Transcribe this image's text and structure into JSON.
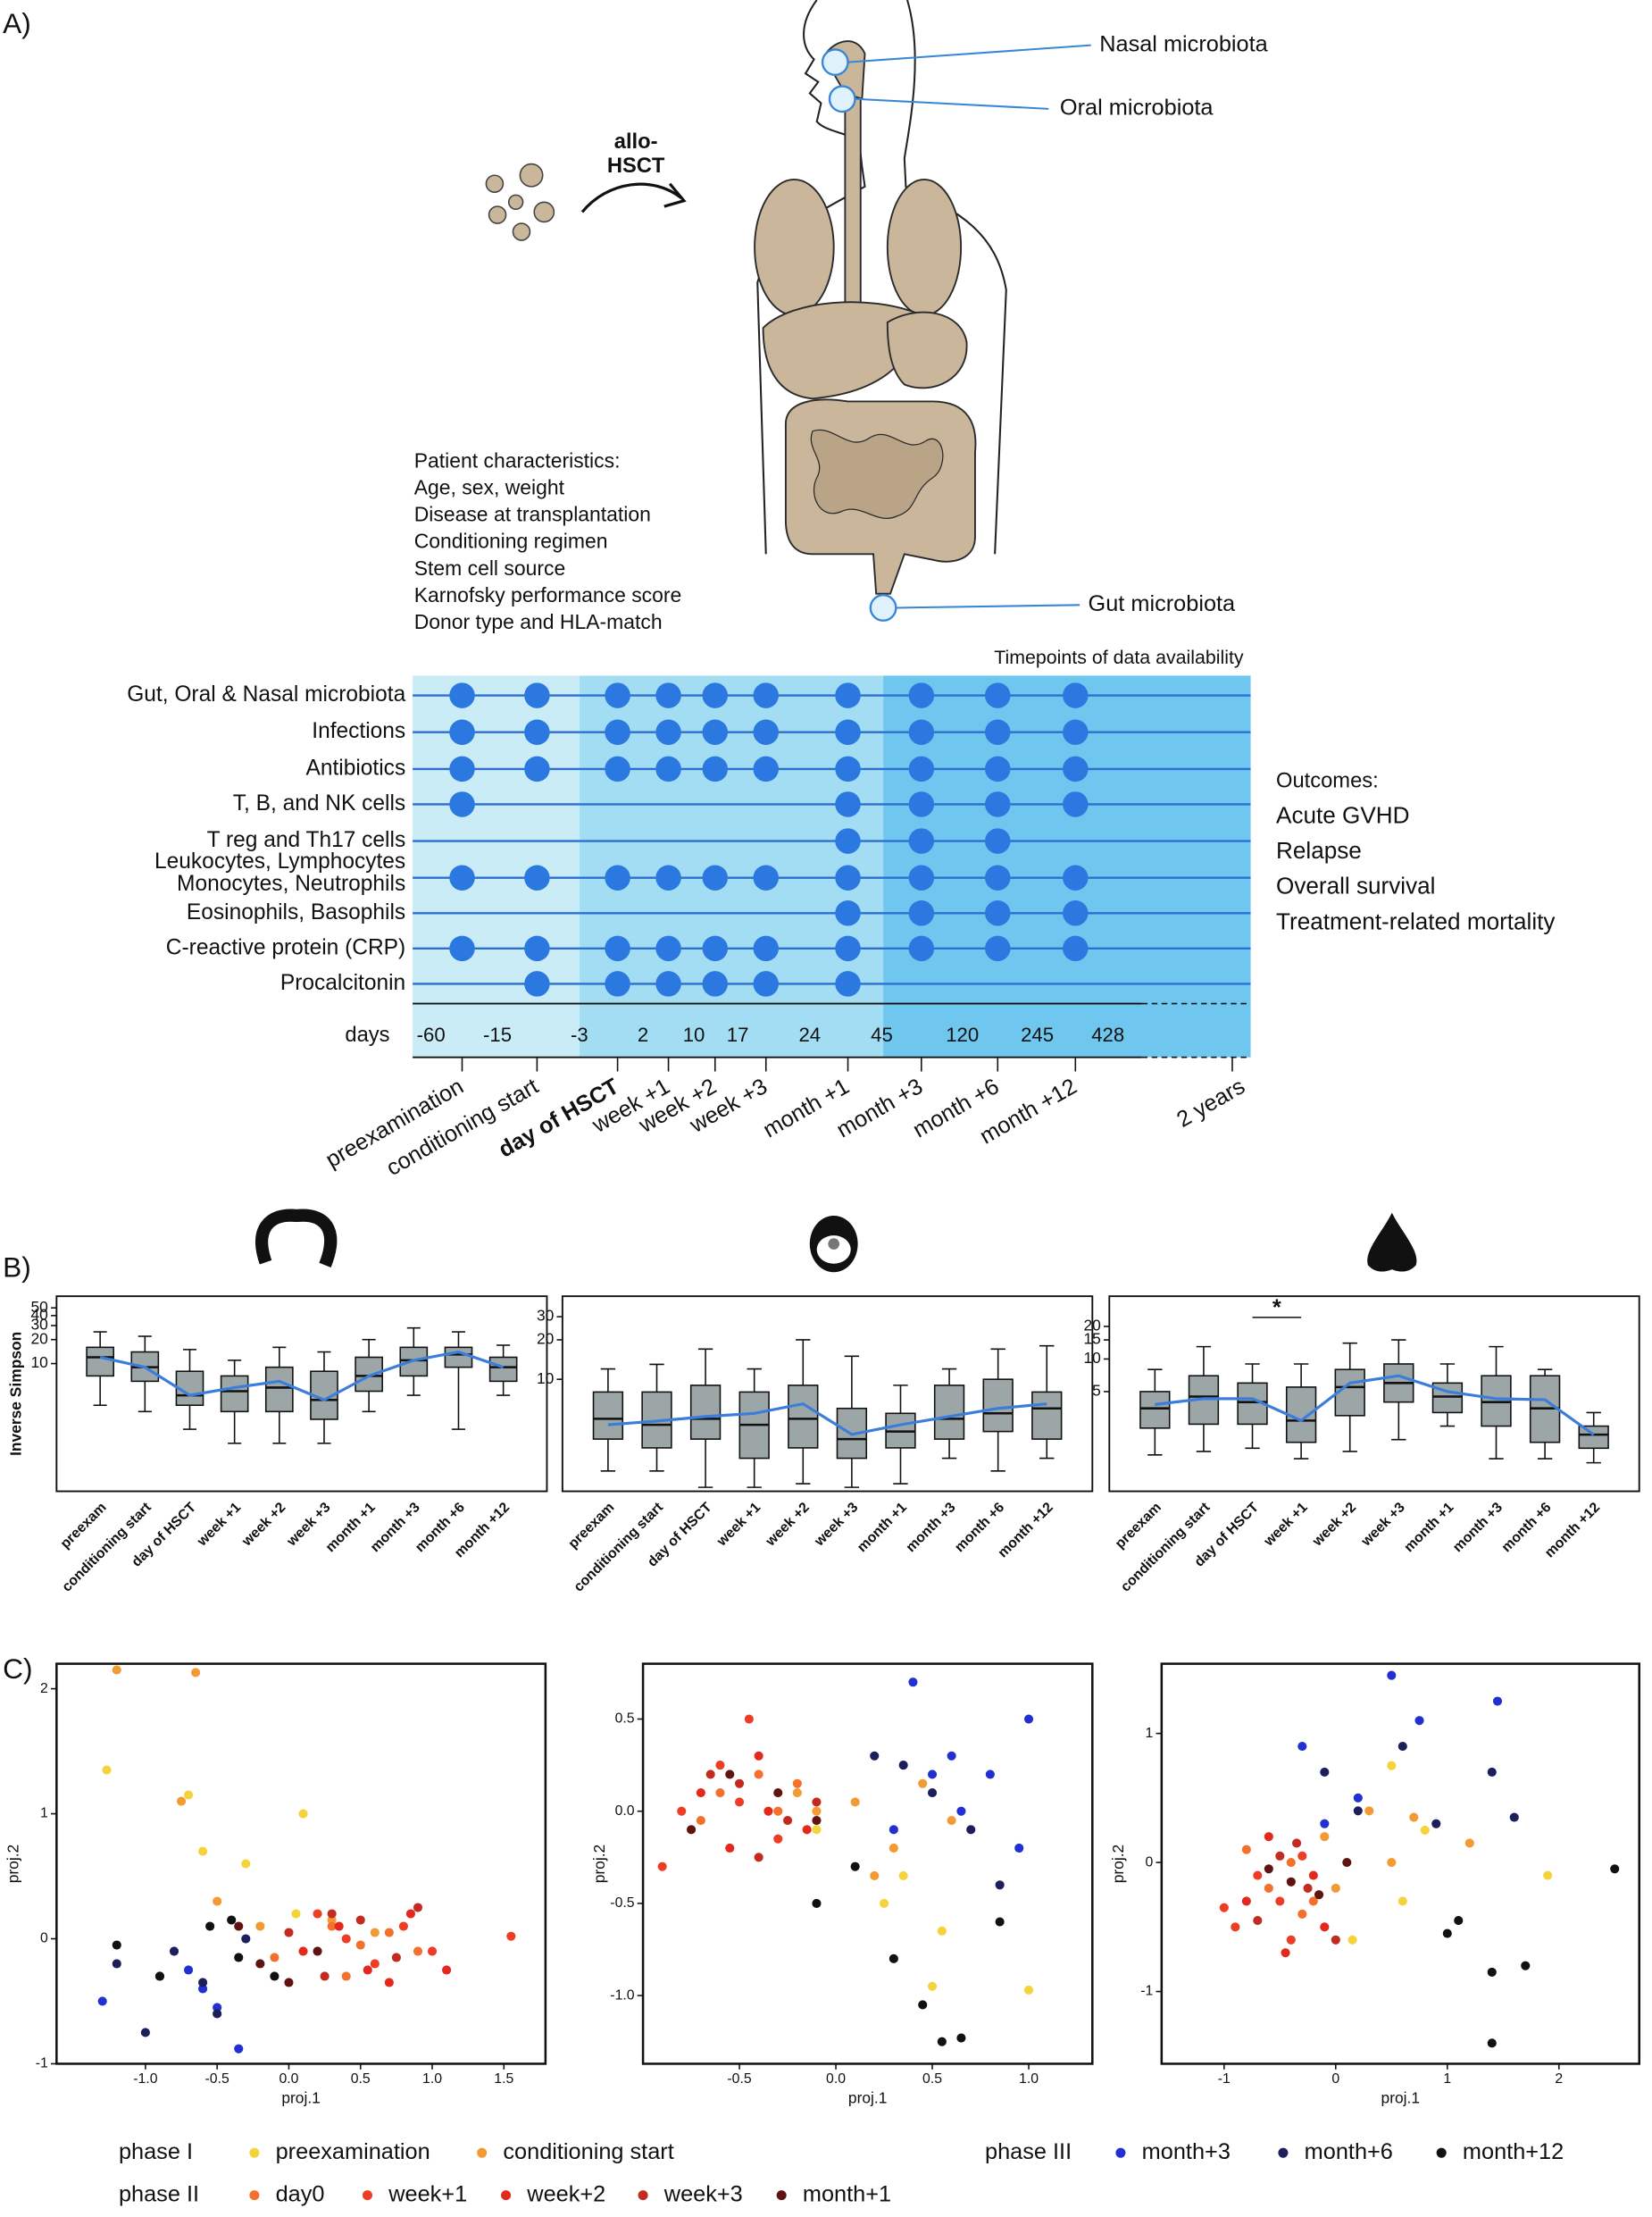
{
  "panels": {
    "a": "A)",
    "b": "B)",
    "c": "C)"
  },
  "illustration": {
    "arrow_label": [
      "allo-",
      "HSCT"
    ],
    "sites": [
      "Nasal microbiota",
      "Oral microbiota",
      "Gut microbiota"
    ]
  },
  "patient_characteristics": {
    "title": "Patient characteristics:",
    "items": [
      "Age, sex, weight",
      "Disease at transplantation",
      "Conditioning regimen",
      "Stem cell source",
      "Karnofsky performance score",
      "Donor type and HLA-match"
    ]
  },
  "timeline": {
    "title": "Timepoints of data availability",
    "rows": [
      {
        "label": [
          "Gut, Oral & Nasal microbiota"
        ],
        "available": [
          true,
          true,
          true,
          true,
          true,
          true,
          true,
          true,
          true,
          true
        ]
      },
      {
        "label": [
          "Infections"
        ],
        "available": [
          true,
          true,
          true,
          true,
          true,
          true,
          true,
          true,
          true,
          true
        ]
      },
      {
        "label": [
          "Antibiotics"
        ],
        "available": [
          true,
          true,
          true,
          true,
          true,
          true,
          true,
          true,
          true,
          true
        ]
      },
      {
        "label": [
          "T, B, and NK cells"
        ],
        "available": [
          true,
          false,
          false,
          false,
          false,
          false,
          true,
          true,
          true,
          true
        ]
      },
      {
        "label": [
          "T reg and Th17 cells"
        ],
        "available": [
          false,
          false,
          false,
          false,
          false,
          false,
          true,
          true,
          true,
          false
        ]
      },
      {
        "label": [
          "Leukocytes, Lymphocytes",
          "Monocytes, Neutrophils"
        ],
        "available": [
          true,
          true,
          true,
          true,
          true,
          true,
          true,
          true,
          true,
          true
        ]
      },
      {
        "label": [
          "Eosinophils, Basophils"
        ],
        "available": [
          false,
          false,
          false,
          false,
          false,
          false,
          true,
          true,
          true,
          true
        ]
      },
      {
        "label": [
          "C-reactive protein (CRP)"
        ],
        "available": [
          true,
          true,
          true,
          true,
          true,
          true,
          true,
          true,
          true,
          true
        ]
      },
      {
        "label": [
          "Procalcitonin"
        ],
        "available": [
          false,
          true,
          true,
          true,
          true,
          true,
          true,
          false,
          false,
          false
        ]
      }
    ],
    "days_label": "days",
    "days": [
      "-60",
      "-15",
      "-3",
      "2",
      "10",
      "17",
      "24",
      "45",
      "120",
      "245",
      "428"
    ],
    "timepoints": [
      "preexamination",
      "conditioning start",
      "day of HSCT",
      "week +1",
      "week +2",
      "week +3",
      "month +1",
      "month +3",
      "month +6",
      "month +12"
    ],
    "end_label": "2 years"
  },
  "outcomes": {
    "title": "Outcomes:",
    "items": [
      "Acute GVHD",
      "Relapse",
      "Overall survival",
      "Treatment-related mortality"
    ]
  },
  "chart_data": [
    {
      "type": "box",
      "ylabel": "Inverse Simpson",
      "yscale": "log",
      "ylim": [
        0.25,
        70
      ],
      "yticks": [
        10,
        20,
        30,
        40,
        50
      ],
      "categories": [
        "preexam",
        "conditioning start",
        "day of HSCT",
        "week +1",
        "week +2",
        "week +3",
        "month +1",
        "month +3",
        "month +6",
        "month +12"
      ],
      "box_color": "#9ca6a6",
      "trend_color": "#3b7ddb",
      "boxes": [
        [
          3,
          7,
          12,
          16,
          25
        ],
        [
          2.5,
          6,
          9,
          14,
          22
        ],
        [
          1.5,
          3,
          4,
          8,
          15
        ],
        [
          1,
          2.5,
          4.5,
          7,
          11
        ],
        [
          1,
          2.5,
          5,
          9,
          16
        ],
        [
          1,
          2,
          3.5,
          8,
          14
        ],
        [
          2.5,
          4.5,
          7,
          12,
          20
        ],
        [
          4,
          7,
          11,
          16,
          28
        ],
        [
          1.5,
          9,
          13,
          16,
          25
        ],
        [
          4,
          6,
          9,
          12,
          17
        ]
      ],
      "trend": [
        12,
        9,
        4,
        5,
        6,
        3.5,
        7,
        11,
        14,
        9
      ]
    },
    {
      "type": "box",
      "yscale": "log",
      "ylim": [
        1.4,
        43
      ],
      "yticks": [
        10,
        20,
        30
      ],
      "categories": [
        "preexam",
        "conditioning start",
        "day of HSCT",
        "week +1",
        "week +2",
        "week +3",
        "month +1",
        "month +3",
        "month +6",
        "month +12"
      ],
      "box_color": "#9ca6a6",
      "trend_color": "#3b7ddb",
      "boxes": [
        [
          2,
          3.5,
          5,
          8,
          12
        ],
        [
          2,
          3,
          4.5,
          8,
          13
        ],
        [
          1.5,
          3.5,
          5,
          9,
          17
        ],
        [
          1.5,
          2.5,
          4.5,
          8,
          12
        ],
        [
          1.6,
          3,
          5,
          9,
          20
        ],
        [
          1.5,
          2.5,
          3.5,
          6,
          15
        ],
        [
          1.6,
          3,
          4,
          5.5,
          9
        ],
        [
          2.5,
          3.5,
          5,
          9,
          12
        ],
        [
          2,
          4,
          5.5,
          10,
          17
        ],
        [
          2.5,
          3.5,
          6,
          8,
          18
        ]
      ],
      "trend": [
        4.5,
        4.8,
        5.2,
        5.5,
        6.5,
        3.8,
        4.5,
        5.2,
        6,
        6.5
      ]
    },
    {
      "type": "box",
      "yscale": "log",
      "ylim": [
        0.6,
        38
      ],
      "yticks": [
        5,
        10,
        15,
        20
      ],
      "annotation": "*",
      "categories": [
        "preexam",
        "conditioning start",
        "day of HSCT",
        "week +1",
        "week +2",
        "week +3",
        "month +1",
        "month +3",
        "month +6",
        "month +12"
      ],
      "box_color": "#9ca6a6",
      "trend_color": "#3b7ddb",
      "boxes": [
        [
          1.3,
          2.3,
          3.5,
          5,
          8
        ],
        [
          1.4,
          2.5,
          4.5,
          7,
          13
        ],
        [
          1.5,
          2.5,
          4,
          6,
          9
        ],
        [
          1.2,
          1.7,
          2.7,
          5.5,
          9
        ],
        [
          1.4,
          3,
          5.5,
          8,
          14
        ],
        [
          1.8,
          4,
          6,
          9,
          15
        ],
        [
          2.4,
          3.2,
          4.5,
          6,
          9
        ],
        [
          1.2,
          2.4,
          4,
          7,
          13
        ],
        [
          1.2,
          1.7,
          3.5,
          7,
          8
        ],
        [
          1.1,
          1.5,
          2,
          2.4,
          3.2
        ]
      ],
      "trend": [
        3.8,
        4.3,
        4.3,
        2.7,
        6,
        7,
        5,
        4.3,
        4.2,
        2
      ]
    },
    {
      "type": "scatter",
      "xlabel": "proj.1",
      "ylabel": "proj.2",
      "xlim": [
        -1.62,
        1.79
      ],
      "ylim": [
        -1.0,
        2.2
      ],
      "xticks": [
        {
          "value": -1,
          "label": "-1.0"
        },
        -0.5,
        {
          "value": 0,
          "label": "0.0"
        },
        0.5,
        {
          "value": 1,
          "label": "1.0"
        },
        1.5
      ],
      "yticks": [
        -1,
        0,
        1,
        2
      ],
      "series": [
        {
          "x": [
            -1.27,
            -0.7,
            -0.6,
            0.05,
            -0.3,
            0.1
          ],
          "y": [
            1.35,
            1.15,
            0.7,
            0.2,
            0.6,
            1.0
          ]
        },
        {
          "x": [
            -1.2,
            -0.65,
            -0.75,
            -0.5,
            -0.2,
            0.3,
            0.6
          ],
          "y": [
            2.15,
            2.13,
            1.1,
            0.3,
            0.1,
            0.15,
            0.05
          ]
        },
        {
          "x": [
            0.3,
            0.5,
            -0.1,
            0.7,
            0.4,
            0.9
          ],
          "y": [
            0.1,
            -0.05,
            -0.15,
            0.05,
            -0.3,
            -0.1
          ]
        },
        {
          "x": [
            0.2,
            0.6,
            0.8,
            1.0,
            0.4,
            1.55
          ],
          "y": [
            0.2,
            -0.2,
            0.1,
            -0.1,
            0.0,
            0.02
          ]
        },
        {
          "x": [
            0.1,
            0.35,
            0.55,
            0.85,
            1.1,
            0.7
          ],
          "y": [
            -0.1,
            0.1,
            -0.25,
            0.2,
            -0.25,
            -0.35
          ]
        },
        {
          "x": [
            0.0,
            0.25,
            0.5,
            0.75,
            0.3,
            0.9
          ],
          "y": [
            0.05,
            -0.3,
            0.15,
            -0.15,
            0.2,
            0.25
          ]
        },
        {
          "x": [
            -0.2,
            0.0,
            0.2,
            -0.35
          ],
          "y": [
            -0.2,
            -0.35,
            -0.1,
            0.1
          ]
        },
        {
          "x": [
            -1.3,
            -0.9,
            -0.6,
            -0.5,
            -0.35,
            -0.7
          ],
          "y": [
            -0.5,
            -0.3,
            -0.4,
            -0.55,
            -0.88,
            -0.25
          ]
        },
        {
          "x": [
            -1.0,
            -0.8,
            -0.6,
            -0.3,
            -1.2,
            -0.5
          ],
          "y": [
            -0.75,
            -0.1,
            -0.35,
            0.0,
            -0.2,
            -0.6
          ]
        },
        {
          "x": [
            -1.2,
            -0.4,
            -0.9,
            -0.1,
            -0.55,
            -0.35
          ],
          "y": [
            -0.05,
            0.15,
            -0.3,
            -0.3,
            0.1,
            -0.15
          ]
        }
      ]
    },
    {
      "type": "scatter",
      "xlabel": "proj.1",
      "ylabel": "proj.2",
      "xlim": [
        -1.0,
        1.33
      ],
      "ylim": [
        -1.37,
        0.8
      ],
      "xticks": [
        -0.5,
        {
          "value": 0,
          "label": "0.0"
        },
        0.5,
        {
          "value": 1,
          "label": "1.0"
        }
      ],
      "yticks": [
        0.5,
        {
          "value": 0,
          "label": "0.0"
        },
        -0.5,
        {
          "value": -1,
          "label": "-1.0"
        }
      ],
      "series": [
        {
          "x": [
            0.25,
            0.5,
            0.55,
            -0.1,
            1.0,
            0.35
          ],
          "y": [
            -0.5,
            -0.95,
            -0.65,
            -0.1,
            -0.97,
            -0.35
          ]
        },
        {
          "x": [
            -0.1,
            0.3,
            0.1,
            0.45,
            0.2,
            -0.2,
            0.6
          ],
          "y": [
            0.0,
            -0.2,
            0.05,
            0.15,
            -0.35,
            0.1,
            -0.05
          ]
        },
        {
          "x": [
            -0.6,
            -0.4,
            -0.3,
            -0.7,
            -0.2
          ],
          "y": [
            0.1,
            0.2,
            0.0,
            -0.05,
            0.15
          ]
        },
        {
          "x": [
            -0.5,
            -0.6,
            -0.3,
            -0.8,
            -0.45,
            -0.9
          ],
          "y": [
            0.05,
            0.25,
            -0.15,
            0.0,
            0.5,
            -0.3
          ]
        },
        {
          "x": [
            -0.4,
            -0.7,
            -0.15,
            -0.55,
            -0.35
          ],
          "y": [
            0.3,
            0.1,
            -0.1,
            -0.2,
            0.0
          ]
        },
        {
          "x": [
            -0.5,
            -0.25,
            -0.65,
            -0.4,
            -0.1
          ],
          "y": [
            0.15,
            -0.05,
            0.2,
            -0.25,
            0.05
          ]
        },
        {
          "x": [
            -0.55,
            -0.3,
            -0.75,
            -0.1
          ],
          "y": [
            0.2,
            0.1,
            -0.1,
            -0.05
          ]
        },
        {
          "x": [
            0.4,
            0.6,
            0.8,
            0.95,
            0.3,
            1.0,
            0.65,
            0.5
          ],
          "y": [
            0.7,
            0.3,
            0.2,
            -0.2,
            -0.1,
            0.5,
            0.0,
            0.2
          ]
        },
        {
          "x": [
            0.2,
            0.5,
            0.7,
            0.35,
            0.85
          ],
          "y": [
            0.3,
            0.1,
            -0.1,
            0.25,
            -0.4
          ]
        },
        {
          "x": [
            0.45,
            0.55,
            0.65,
            -0.1,
            0.3,
            0.85,
            0.1
          ],
          "y": [
            -1.05,
            -1.25,
            -1.23,
            -0.5,
            -0.8,
            -0.6,
            -0.3
          ]
        }
      ]
    },
    {
      "type": "scatter",
      "xlabel": "proj.1",
      "ylabel": "proj.2",
      "xlim": [
        -1.56,
        2.72
      ],
      "ylim": [
        -1.56,
        1.54
      ],
      "xticks": [
        -1,
        0,
        1,
        2
      ],
      "yticks": [
        1,
        0,
        -1
      ],
      "series": [
        {
          "x": [
            0.5,
            0.8,
            1.9,
            0.6,
            0.15
          ],
          "y": [
            0.75,
            0.25,
            -0.1,
            -0.3,
            -0.6
          ]
        },
        {
          "x": [
            0.3,
            -0.1,
            0.5,
            1.2,
            0.0,
            0.7
          ],
          "y": [
            0.4,
            0.2,
            0.0,
            0.15,
            -0.2,
            0.35
          ]
        },
        {
          "x": [
            -0.6,
            -0.4,
            -0.3,
            -0.8,
            -0.2
          ],
          "y": [
            -0.2,
            0.0,
            -0.4,
            0.1,
            -0.3
          ]
        },
        {
          "x": [
            -0.7,
            -0.5,
            -0.9,
            -0.3,
            -0.4,
            -1.0
          ],
          "y": [
            -0.1,
            -0.3,
            -0.5,
            0.05,
            -0.6,
            -0.35
          ]
        },
        {
          "x": [
            -0.6,
            -0.2,
            -0.8,
            -0.45,
            -0.1
          ],
          "y": [
            0.2,
            -0.1,
            -0.3,
            -0.7,
            -0.5
          ]
        },
        {
          "x": [
            -0.5,
            -0.25,
            -0.7,
            -0.35,
            0.0
          ],
          "y": [
            0.05,
            -0.2,
            -0.45,
            0.15,
            -0.6
          ]
        },
        {
          "x": [
            -0.4,
            -0.15,
            0.1,
            -0.6
          ],
          "y": [
            -0.15,
            -0.25,
            0.0,
            -0.05
          ]
        },
        {
          "x": [
            0.5,
            0.75,
            -0.3,
            1.45,
            0.2,
            -0.1
          ],
          "y": [
            1.45,
            1.1,
            0.9,
            1.25,
            0.5,
            0.3
          ]
        },
        {
          "x": [
            1.4,
            0.9,
            0.6,
            0.2,
            1.6,
            -0.1
          ],
          "y": [
            0.7,
            0.3,
            0.9,
            0.4,
            0.35,
            0.7
          ]
        },
        {
          "x": [
            2.5,
            1.4,
            1.0,
            1.7,
            1.1,
            1.4
          ],
          "y": [
            -0.05,
            -0.85,
            -0.55,
            -0.8,
            -0.45,
            -1.4
          ]
        }
      ]
    }
  ],
  "legend": [
    {
      "title": "phase I",
      "items": [
        {
          "name": "preexamination",
          "color": "#f4d43a"
        },
        {
          "name": "conditioning start",
          "color": "#f29a33"
        }
      ]
    },
    {
      "title": "phase II",
      "items": [
        {
          "name": "day0",
          "color": "#f4712d"
        },
        {
          "name": "week+1",
          "color": "#ee3d25"
        },
        {
          "name": "week+2",
          "color": "#e3281d"
        },
        {
          "name": "week+3",
          "color": "#c22b20"
        },
        {
          "name": "month+1",
          "color": "#5e1410"
        }
      ]
    },
    {
      "title": "phase III",
      "items": [
        {
          "name": "month+3",
          "color": "#2130d0"
        },
        {
          "name": "month+6",
          "color": "#1c1f5c"
        },
        {
          "name": "month+12",
          "color": "#111111"
        }
      ]
    }
  ]
}
